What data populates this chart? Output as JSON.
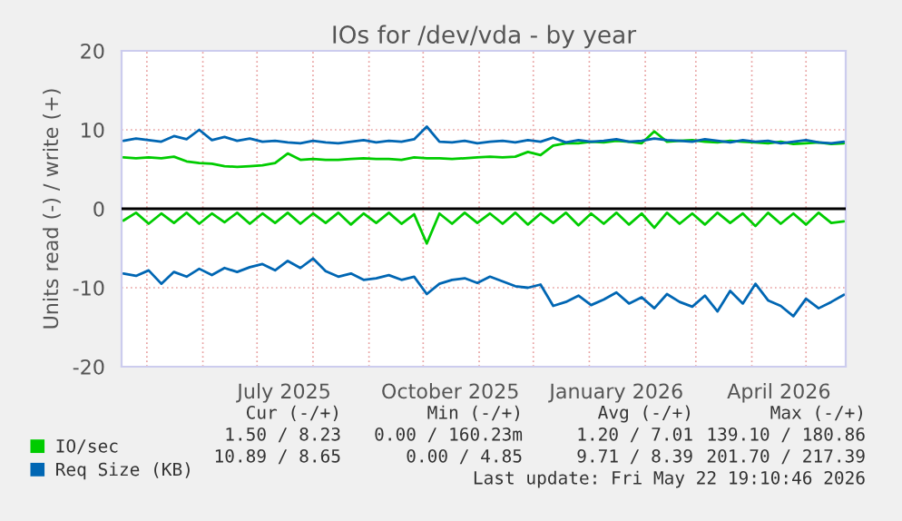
{
  "chart_data": {
    "type": "line",
    "title": "IOs for /dev/vda - by year",
    "ylabel": "Units read (-) / write (+)",
    "x": [
      "2025-04-18",
      "2025-04-25",
      "2025-05-02",
      "2025-05-09",
      "2025-05-16",
      "2025-05-23",
      "2025-05-30",
      "2025-06-06",
      "2025-06-13",
      "2025-06-20",
      "2025-06-27",
      "2025-07-04",
      "2025-07-11",
      "2025-07-18",
      "2025-07-25",
      "2025-08-01",
      "2025-08-08",
      "2025-08-15",
      "2025-08-22",
      "2025-08-29",
      "2025-09-05",
      "2025-09-12",
      "2025-09-19",
      "2025-09-26",
      "2025-10-03",
      "2025-10-10",
      "2025-10-17",
      "2025-10-24",
      "2025-10-31",
      "2025-11-07",
      "2025-11-14",
      "2025-11-21",
      "2025-11-28",
      "2025-12-05",
      "2025-12-12",
      "2025-12-19",
      "2025-12-26",
      "2026-01-02",
      "2026-01-09",
      "2026-01-16",
      "2026-01-23",
      "2026-01-30",
      "2026-02-06",
      "2026-02-13",
      "2026-02-20",
      "2026-02-27",
      "2026-03-06",
      "2026-03-13",
      "2026-03-20",
      "2026-03-27",
      "2026-04-03",
      "2026-04-10",
      "2026-04-17",
      "2026-04-24",
      "2026-05-01",
      "2026-05-08",
      "2026-05-15",
      "2026-05-22"
    ],
    "series": [
      {
        "name": "IO/sec",
        "color": "#00cc00",
        "values": [
          6.5,
          6.4,
          6.5,
          6.4,
          6.6,
          6.0,
          5.8,
          5.7,
          5.4,
          5.3,
          5.4,
          5.5,
          5.8,
          7.0,
          6.2,
          6.3,
          6.2,
          6.2,
          6.3,
          6.4,
          6.3,
          6.3,
          6.2,
          6.5,
          6.4,
          6.4,
          6.3,
          6.4,
          6.5,
          6.6,
          6.5,
          6.6,
          7.2,
          6.8,
          8.0,
          8.3,
          8.3,
          8.5,
          8.4,
          8.6,
          8.5,
          8.3,
          9.8,
          8.5,
          8.6,
          8.7,
          8.5,
          8.4,
          8.6,
          8.5,
          8.4,
          8.3,
          8.5,
          8.2,
          8.3,
          8.4,
          8.2,
          8.3
        ]
      },
      {
        "name": "Req Size (KB)",
        "color": "#0066b3",
        "values": [
          8.6,
          8.9,
          8.7,
          8.5,
          9.2,
          8.8,
          10.0,
          8.7,
          9.1,
          8.6,
          8.9,
          8.5,
          8.6,
          8.4,
          8.3,
          8.6,
          8.4,
          8.3,
          8.5,
          8.7,
          8.4,
          8.6,
          8.5,
          8.8,
          10.4,
          8.5,
          8.4,
          8.6,
          8.3,
          8.5,
          8.6,
          8.4,
          8.7,
          8.5,
          9.0,
          8.4,
          8.7,
          8.5,
          8.6,
          8.8,
          8.5,
          8.6,
          8.9,
          8.7,
          8.6,
          8.5,
          8.8,
          8.6,
          8.4,
          8.7,
          8.5,
          8.6,
          8.3,
          8.5,
          8.7,
          8.4,
          8.3,
          8.5
        ]
      },
      {
        "color": "#00cc00",
        "values": [
          -1.5,
          -0.5,
          -1.9,
          -0.6,
          -1.8,
          -0.5,
          -1.9,
          -0.6,
          -1.7,
          -0.5,
          -1.9,
          -0.6,
          -1.8,
          -0.5,
          -1.9,
          -0.6,
          -1.8,
          -0.5,
          -2.0,
          -0.6,
          -1.8,
          -0.5,
          -1.9,
          -0.7,
          -4.4,
          -0.6,
          -1.9,
          -0.5,
          -1.8,
          -0.6,
          -1.9,
          -0.5,
          -2.0,
          -0.6,
          -1.8,
          -0.5,
          -2.1,
          -0.6,
          -1.9,
          -0.5,
          -2.0,
          -0.6,
          -2.4,
          -0.5,
          -1.9,
          -0.6,
          -2.0,
          -0.5,
          -1.8,
          -0.6,
          -2.2,
          -0.5,
          -1.9,
          -0.6,
          -2.0,
          -0.5,
          -1.8,
          -1.6
        ]
      },
      {
        "color": "#0066b3",
        "values": [
          -8.2,
          -8.5,
          -7.8,
          -9.5,
          -8.0,
          -8.6,
          -7.6,
          -8.4,
          -7.5,
          -8.0,
          -7.4,
          -7.0,
          -7.8,
          -6.6,
          -7.5,
          -6.3,
          -7.9,
          -8.6,
          -8.2,
          -9.0,
          -8.8,
          -8.4,
          -9.0,
          -8.6,
          -10.8,
          -9.5,
          -9.0,
          -8.8,
          -9.4,
          -8.6,
          -9.2,
          -9.8,
          -10.0,
          -9.6,
          -12.3,
          -11.8,
          -11.0,
          -12.2,
          -11.5,
          -10.6,
          -12.0,
          -11.2,
          -12.6,
          -10.8,
          -11.8,
          -12.4,
          -11.0,
          -13.0,
          -10.4,
          -12.0,
          -9.5,
          -11.6,
          -12.3,
          -13.6,
          -11.4,
          -12.6,
          -11.8,
          -10.9
        ]
      }
    ],
    "xlim": [
      "2025-04-17",
      "2026-05-23"
    ],
    "xticks": [
      {
        "value": "2025-05-01",
        "label": null
      },
      {
        "value": "2025-06-01",
        "label": null
      },
      {
        "value": "2025-07-01",
        "label": null
      },
      {
        "value": "2025-07-16",
        "label": "July 2025"
      },
      {
        "value": "2025-08-01",
        "label": null
      },
      {
        "value": "2025-09-01",
        "label": null
      },
      {
        "value": "2025-10-01",
        "label": null
      },
      {
        "value": "2025-10-16",
        "label": "October 2025"
      },
      {
        "value": "2025-11-01",
        "label": null
      },
      {
        "value": "2025-12-01",
        "label": null
      },
      {
        "value": "2026-01-01",
        "label": null
      },
      {
        "value": "2026-01-16",
        "label": "January 2026"
      },
      {
        "value": "2026-02-01",
        "label": null
      },
      {
        "value": "2026-03-01",
        "label": null
      },
      {
        "value": "2026-04-01",
        "label": null
      },
      {
        "value": "2026-04-16",
        "label": "April 2026"
      },
      {
        "value": "2026-05-01",
        "label": null
      }
    ],
    "ylim": [
      -20,
      20
    ],
    "yticks": [
      -20,
      -10,
      0,
      10,
      20
    ],
    "ref_lines": [
      {
        "axis": "y",
        "value": 0,
        "color": "#000000"
      }
    ],
    "grid": true,
    "legend": "bottom left",
    "marker": "none",
    "line_style": "solid",
    "annotations": [
      "Cur (-/+)",
      "Min (-/+)",
      "Avg (-/+)",
      "Max (-/+)",
      "1.50 / 8.23",
      "0.00 / 160.23m",
      "1.20 / 7.01",
      "139.10 / 180.86",
      "10.89 / 8.65",
      "0.00 / 4.85",
      "9.71 / 8.39",
      "201.70 / 217.39",
      "Last update: Fri May 22 19:10:46 2026"
    ]
  }
}
